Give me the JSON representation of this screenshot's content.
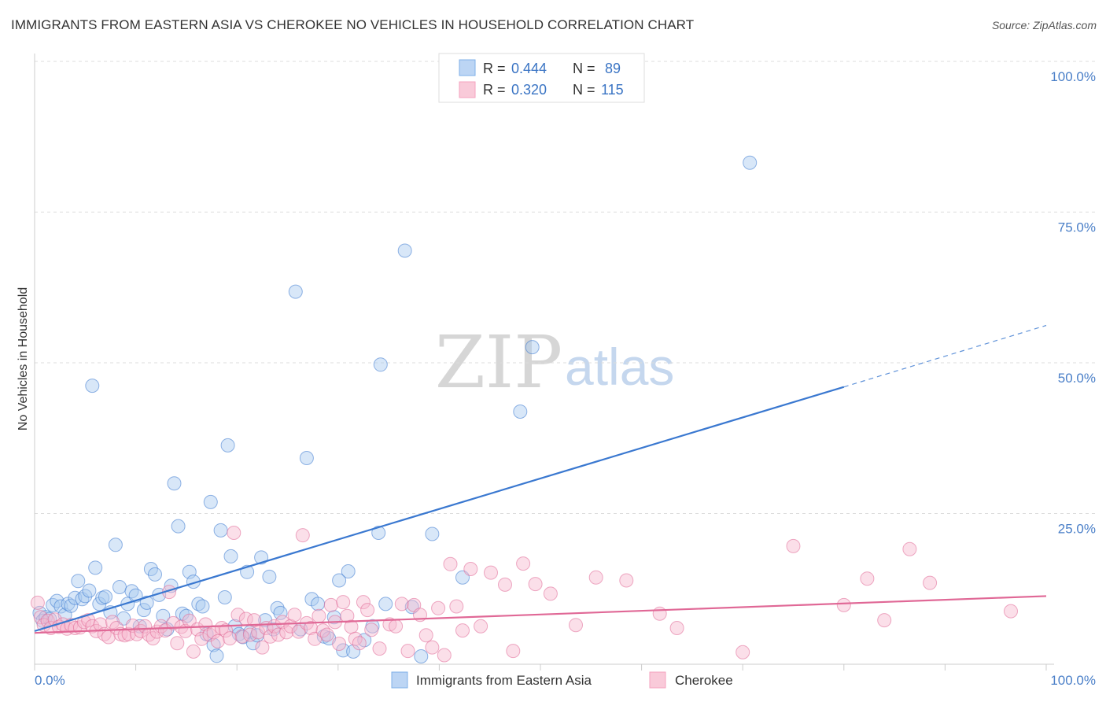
{
  "header": {
    "title": "IMMIGRANTS FROM EASTERN ASIA VS CHEROKEE NO VEHICLES IN HOUSEHOLD CORRELATION CHART",
    "source": "Source: ZipAtlas.com"
  },
  "watermark": {
    "zip": "ZIP",
    "atlas": "atlas"
  },
  "legend": {
    "rows": [
      {
        "r_label": "R =",
        "r_value": "0.444",
        "n_label": "N =",
        "n_value": "89",
        "color": "#7fb0e8"
      },
      {
        "r_label": "R =",
        "r_value": "0.320",
        "n_label": "N =",
        "n_value": "115",
        "color": "#f5a3bf"
      }
    ]
  },
  "chart_data": {
    "type": "scatter",
    "ylabel": "No Vehicles in Household",
    "xlabel": "",
    "xlim": [
      0,
      100
    ],
    "ylim": [
      0,
      100
    ],
    "x_tick_labels": [
      "0.0%",
      "100.0%"
    ],
    "y_ticks": [
      25,
      50,
      75,
      100
    ],
    "y_tick_labels": [
      "25.0%",
      "50.0%",
      "75.0%",
      "100.0%"
    ],
    "grid": true,
    "legend_position": "top-center",
    "series": [
      {
        "name": "Immigrants from Eastern Asia",
        "color": "#3a78d0",
        "fill": "#a9c9f0",
        "r": 0.444,
        "n": 89,
        "trend": {
          "x": [
            0,
            80
          ],
          "y": [
            5.5,
            46.0
          ],
          "dashed_to": [
            100,
            56.2
          ]
        },
        "points": [
          [
            0.5,
            8.5
          ],
          [
            0.8,
            7.2
          ],
          [
            1.1,
            7.8
          ],
          [
            1.5,
            7.5
          ],
          [
            1.8,
            9.8
          ],
          [
            2.2,
            10.5
          ],
          [
            2.6,
            9.6
          ],
          [
            3.0,
            8.2
          ],
          [
            3.3,
            10.0
          ],
          [
            3.6,
            9.7
          ],
          [
            4.0,
            11.0
          ],
          [
            4.3,
            13.8
          ],
          [
            4.7,
            10.8
          ],
          [
            5.0,
            11.3
          ],
          [
            5.4,
            12.2
          ],
          [
            5.7,
            46.2
          ],
          [
            6.0,
            16.0
          ],
          [
            6.4,
            10.0
          ],
          [
            6.7,
            11.0
          ],
          [
            7.0,
            11.2
          ],
          [
            7.5,
            8.6
          ],
          [
            8.0,
            19.8
          ],
          [
            8.4,
            12.8
          ],
          [
            8.8,
            7.6
          ],
          [
            9.2,
            10.0
          ],
          [
            9.6,
            12.1
          ],
          [
            10.0,
            11.4
          ],
          [
            10.4,
            6.3
          ],
          [
            10.8,
            9.0
          ],
          [
            11.1,
            10.2
          ],
          [
            11.5,
            15.8
          ],
          [
            11.9,
            14.9
          ],
          [
            12.3,
            11.5
          ],
          [
            12.7,
            8.0
          ],
          [
            13.1,
            5.8
          ],
          [
            13.5,
            13.0
          ],
          [
            13.8,
            30.0
          ],
          [
            14.2,
            22.9
          ],
          [
            14.6,
            8.4
          ],
          [
            15.0,
            8.0
          ],
          [
            15.3,
            15.3
          ],
          [
            15.7,
            13.7
          ],
          [
            16.2,
            10.0
          ],
          [
            16.6,
            9.6
          ],
          [
            17.0,
            5.0
          ],
          [
            17.4,
            26.9
          ],
          [
            17.7,
            3.2
          ],
          [
            18.0,
            1.4
          ],
          [
            18.4,
            22.2
          ],
          [
            18.8,
            11.1
          ],
          [
            19.1,
            36.3
          ],
          [
            19.4,
            17.9
          ],
          [
            19.8,
            6.3
          ],
          [
            20.2,
            5.0
          ],
          [
            20.6,
            4.5
          ],
          [
            21.0,
            15.3
          ],
          [
            21.3,
            5.3
          ],
          [
            21.6,
            3.5
          ],
          [
            22.0,
            4.8
          ],
          [
            22.4,
            17.7
          ],
          [
            22.8,
            7.3
          ],
          [
            23.2,
            14.5
          ],
          [
            23.6,
            5.8
          ],
          [
            24.0,
            9.3
          ],
          [
            24.3,
            8.5
          ],
          [
            25.8,
            61.8
          ],
          [
            26.3,
            5.8
          ],
          [
            26.9,
            34.2
          ],
          [
            27.4,
            10.8
          ],
          [
            28.0,
            10.0
          ],
          [
            28.6,
            4.6
          ],
          [
            29.1,
            4.3
          ],
          [
            29.6,
            7.8
          ],
          [
            30.1,
            13.9
          ],
          [
            30.5,
            2.3
          ],
          [
            31.0,
            15.4
          ],
          [
            31.5,
            2.1
          ],
          [
            32.6,
            4.0
          ],
          [
            33.4,
            6.3
          ],
          [
            34.0,
            21.8
          ],
          [
            34.2,
            49.7
          ],
          [
            34.7,
            10.0
          ],
          [
            36.6,
            68.6
          ],
          [
            37.3,
            9.5
          ],
          [
            38.2,
            1.3
          ],
          [
            39.3,
            21.6
          ],
          [
            42.3,
            14.4
          ],
          [
            48.0,
            41.9
          ],
          [
            49.2,
            52.6
          ],
          [
            70.7,
            83.2
          ]
        ]
      },
      {
        "name": "Cherokee",
        "color": "#e06896",
        "fill": "#f7b8ce",
        "r": 0.32,
        "n": 115,
        "trend": {
          "x": [
            0,
            100
          ],
          "y": [
            5.2,
            11.3
          ]
        },
        "points": [
          [
            0.3,
            10.2
          ],
          [
            0.6,
            7.8
          ],
          [
            0.9,
            6.5
          ],
          [
            1.3,
            7.2
          ],
          [
            1.6,
            6.0
          ],
          [
            2.0,
            7.4
          ],
          [
            2.4,
            6.2
          ],
          [
            2.8,
            6.6
          ],
          [
            3.2,
            5.9
          ],
          [
            3.6,
            6.5
          ],
          [
            4.0,
            6.0
          ],
          [
            4.5,
            6.1
          ],
          [
            4.9,
            7.0
          ],
          [
            5.3,
            7.3
          ],
          [
            5.7,
            6.3
          ],
          [
            6.1,
            5.5
          ],
          [
            6.5,
            6.6
          ],
          [
            6.9,
            5.0
          ],
          [
            7.3,
            4.5
          ],
          [
            7.7,
            7.0
          ],
          [
            8.1,
            6.0
          ],
          [
            8.5,
            5.0
          ],
          [
            8.9,
            4.8
          ],
          [
            9.3,
            5.0
          ],
          [
            9.7,
            6.4
          ],
          [
            10.1,
            5.0
          ],
          [
            10.5,
            5.5
          ],
          [
            10.9,
            6.3
          ],
          [
            11.3,
            4.9
          ],
          [
            11.7,
            4.3
          ],
          [
            12.1,
            5.4
          ],
          [
            12.5,
            6.3
          ],
          [
            12.9,
            5.6
          ],
          [
            13.3,
            12.0
          ],
          [
            13.7,
            6.8
          ],
          [
            14.1,
            3.5
          ],
          [
            14.5,
            6.2
          ],
          [
            14.9,
            5.5
          ],
          [
            15.3,
            7.2
          ],
          [
            15.7,
            2.1
          ],
          [
            16.1,
            5.8
          ],
          [
            16.5,
            4.2
          ],
          [
            16.9,
            6.6
          ],
          [
            17.3,
            4.9
          ],
          [
            17.7,
            5.3
          ],
          [
            18.1,
            3.8
          ],
          [
            18.5,
            6.0
          ],
          [
            18.9,
            5.6
          ],
          [
            19.3,
            4.3
          ],
          [
            19.7,
            21.8
          ],
          [
            20.1,
            8.2
          ],
          [
            20.5,
            4.6
          ],
          [
            20.9,
            7.5
          ],
          [
            21.3,
            4.9
          ],
          [
            21.7,
            7.3
          ],
          [
            22.1,
            5.3
          ],
          [
            22.5,
            2.8
          ],
          [
            22.9,
            6.0
          ],
          [
            23.3,
            4.6
          ],
          [
            23.7,
            6.3
          ],
          [
            24.1,
            4.9
          ],
          [
            24.5,
            7.0
          ],
          [
            24.9,
            5.3
          ],
          [
            25.3,
            6.3
          ],
          [
            25.7,
            8.2
          ],
          [
            26.1,
            5.4
          ],
          [
            26.5,
            21.4
          ],
          [
            26.9,
            6.8
          ],
          [
            27.3,
            6.0
          ],
          [
            27.7,
            4.2
          ],
          [
            28.1,
            8.0
          ],
          [
            28.5,
            5.6
          ],
          [
            28.9,
            4.9
          ],
          [
            29.3,
            9.8
          ],
          [
            29.7,
            7.0
          ],
          [
            30.1,
            3.4
          ],
          [
            30.5,
            10.3
          ],
          [
            30.9,
            8.0
          ],
          [
            31.3,
            6.2
          ],
          [
            31.7,
            4.2
          ],
          [
            32.1,
            3.5
          ],
          [
            32.5,
            10.3
          ],
          [
            32.9,
            9.0
          ],
          [
            33.3,
            5.7
          ],
          [
            34.1,
            2.6
          ],
          [
            35.1,
            6.6
          ],
          [
            35.7,
            6.3
          ],
          [
            36.3,
            10.0
          ],
          [
            36.9,
            2.2
          ],
          [
            37.5,
            9.8
          ],
          [
            38.1,
            8.2
          ],
          [
            38.7,
            4.8
          ],
          [
            39.3,
            2.8
          ],
          [
            39.9,
            9.3
          ],
          [
            40.5,
            1.5
          ],
          [
            41.1,
            16.6
          ],
          [
            41.7,
            9.6
          ],
          [
            42.3,
            5.6
          ],
          [
            43.1,
            15.8
          ],
          [
            44.1,
            6.3
          ],
          [
            45.1,
            15.2
          ],
          [
            46.5,
            13.2
          ],
          [
            47.3,
            2.2
          ],
          [
            48.3,
            16.7
          ],
          [
            49.5,
            13.3
          ],
          [
            51.0,
            11.7
          ],
          [
            53.5,
            6.5
          ],
          [
            55.5,
            14.4
          ],
          [
            58.5,
            13.9
          ],
          [
            61.8,
            8.4
          ],
          [
            63.5,
            6.0
          ],
          [
            70.0,
            2.0
          ],
          [
            75.0,
            19.6
          ],
          [
            80.0,
            9.8
          ],
          [
            82.3,
            14.2
          ],
          [
            84.0,
            7.3
          ],
          [
            86.5,
            19.1
          ],
          [
            88.5,
            13.5
          ],
          [
            96.5,
            8.8
          ]
        ]
      }
    ]
  }
}
